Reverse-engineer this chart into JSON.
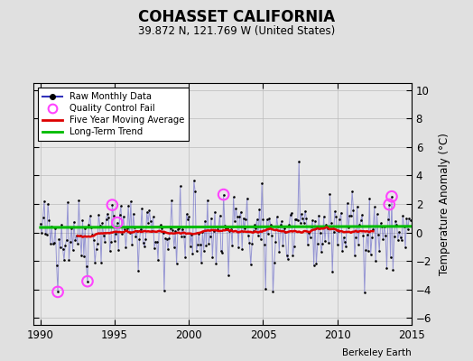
{
  "title": "COHASSET CALIFORNIA",
  "subtitle": "39.872 N, 121.769 W (United States)",
  "ylabel": "Temperature Anomaly (°C)",
  "xlim": [
    1989.5,
    2015.0
  ],
  "ylim": [
    -6.5,
    10.5
  ],
  "yticks": [
    -6,
    -4,
    -2,
    0,
    2,
    4,
    6,
    8,
    10
  ],
  "xticks": [
    1990,
    1995,
    2000,
    2005,
    2010,
    2015
  ],
  "bg_color": "#e0e0e0",
  "plot_bg_color": "#e8e8e8",
  "raw_line_color": "#3333bb",
  "raw_line_alpha": 0.45,
  "raw_dot_color": "#000000",
  "ma_color": "#dd0000",
  "trend_color": "#00bb00",
  "qc_fail_color": "#ff44ff",
  "watermark": "Berkeley Earth",
  "seed": 42,
  "n_months": 300,
  "start_year": 1990.0,
  "qc_fail_indices": [
    14,
    38,
    58,
    62,
    148,
    282,
    284
  ],
  "trend_slope": 0.003,
  "trend_intercept": 0.35
}
